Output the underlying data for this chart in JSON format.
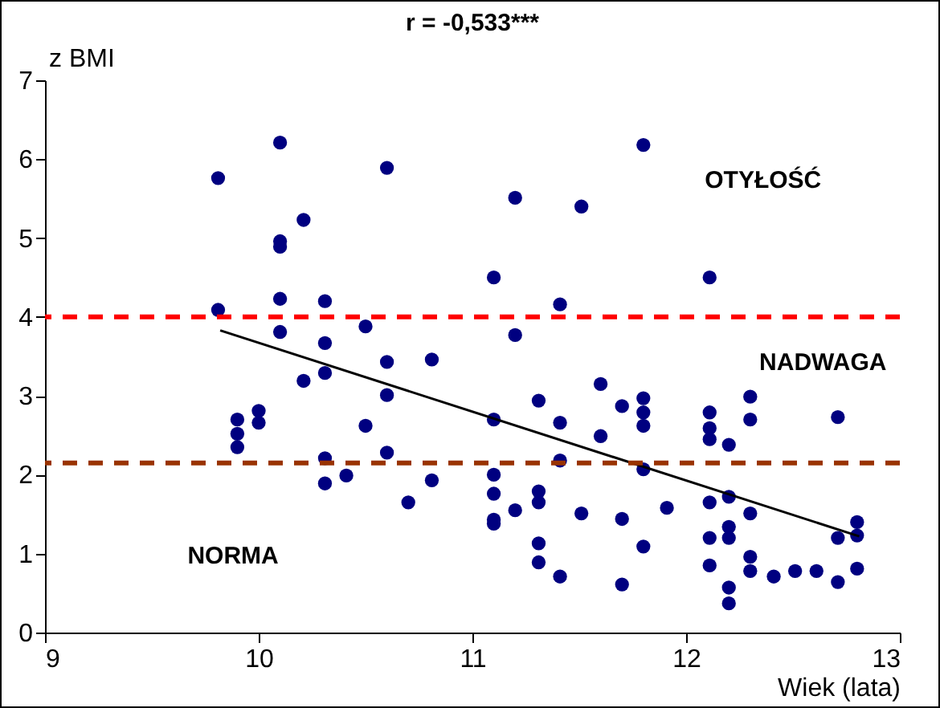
{
  "chart_data": {
    "type": "scatter",
    "title": "r = -0,533***",
    "xlabel": "Wiek (lata)",
    "ylabel": "z BMI",
    "xlim": [
      9,
      13
    ],
    "xticks": [
      9,
      10,
      11,
      12,
      13
    ],
    "ylim": [
      0,
      7
    ],
    "yticks": [
      0,
      1,
      2,
      3,
      4,
      5,
      6,
      7
    ],
    "grid": false,
    "series": [
      {
        "marker": "circle",
        "color": "#000080",
        "x": [
          9.81,
          10.1,
          10.21,
          10.1,
          10.1,
          9.81,
          10.1,
          10.31,
          10.1,
          10.31,
          10.21,
          10.31,
          9.9,
          9.9,
          9.9,
          10.0,
          10.0,
          10.31,
          10.31,
          10.41,
          10.5,
          10.5,
          10.6,
          10.6,
          10.6,
          10.6,
          10.7,
          10.81,
          10.81,
          11.1,
          11.1,
          11.1,
          11.1,
          11.1,
          11.1,
          11.2,
          11.2,
          11.2,
          11.31,
          11.31,
          11.31,
          11.31,
          11.31,
          11.41,
          11.41,
          11.41,
          11.41,
          11.51,
          11.51,
          11.6,
          11.6,
          11.7,
          11.7,
          11.7,
          11.8,
          11.8,
          11.8,
          11.8,
          11.8,
          11.8,
          11.91,
          12.11,
          12.11,
          12.11,
          12.11,
          12.11,
          12.11,
          12.11,
          12.2,
          12.2,
          12.2,
          12.2,
          12.2,
          12.2,
          12.3,
          12.3,
          12.3,
          12.3,
          12.3,
          12.41,
          12.51,
          12.61,
          12.71,
          12.71,
          12.71,
          12.8,
          12.8,
          12.8
        ],
        "values": [
          5.76,
          6.21,
          5.23,
          4.96,
          4.89,
          4.09,
          4.23,
          4.2,
          3.81,
          3.67,
          3.19,
          3.29,
          2.7,
          2.52,
          2.35,
          2.81,
          2.66,
          2.21,
          1.89,
          1.99,
          3.88,
          2.62,
          5.89,
          3.43,
          3.01,
          2.28,
          1.65,
          3.46,
          1.93,
          4.5,
          2.7,
          2.0,
          1.76,
          1.43,
          1.38,
          5.51,
          3.77,
          1.55,
          2.94,
          1.79,
          1.65,
          1.13,
          0.89,
          4.16,
          2.66,
          2.18,
          0.71,
          5.4,
          1.51,
          3.15,
          2.49,
          2.87,
          1.44,
          0.61,
          6.18,
          2.97,
          2.79,
          2.62,
          2.07,
          1.09,
          1.58,
          4.5,
          2.79,
          2.59,
          2.45,
          1.65,
          1.2,
          0.85,
          2.38,
          1.72,
          1.34,
          1.2,
          0.57,
          0.37,
          2.99,
          2.7,
          1.51,
          0.96,
          0.78,
          0.71,
          0.78,
          0.78,
          2.73,
          1.2,
          0.64,
          1.4,
          1.23,
          0.81
        ]
      },
      {
        "type": "line",
        "marker": "none",
        "color": "#000000",
        "x": [
          9.82,
          12.81
        ],
        "values": [
          3.83,
          1.22
        ]
      }
    ],
    "ref_lines": [
      {
        "axis": "y",
        "value": 4.0,
        "color": "#ff0000",
        "line_style": "dashed"
      },
      {
        "axis": "y",
        "value": 2.15,
        "color": "#993300",
        "line_style": "dashed"
      }
    ],
    "annotations": [
      "OTYŁOŚĆ",
      "NADWAGA",
      "NORMA"
    ]
  }
}
